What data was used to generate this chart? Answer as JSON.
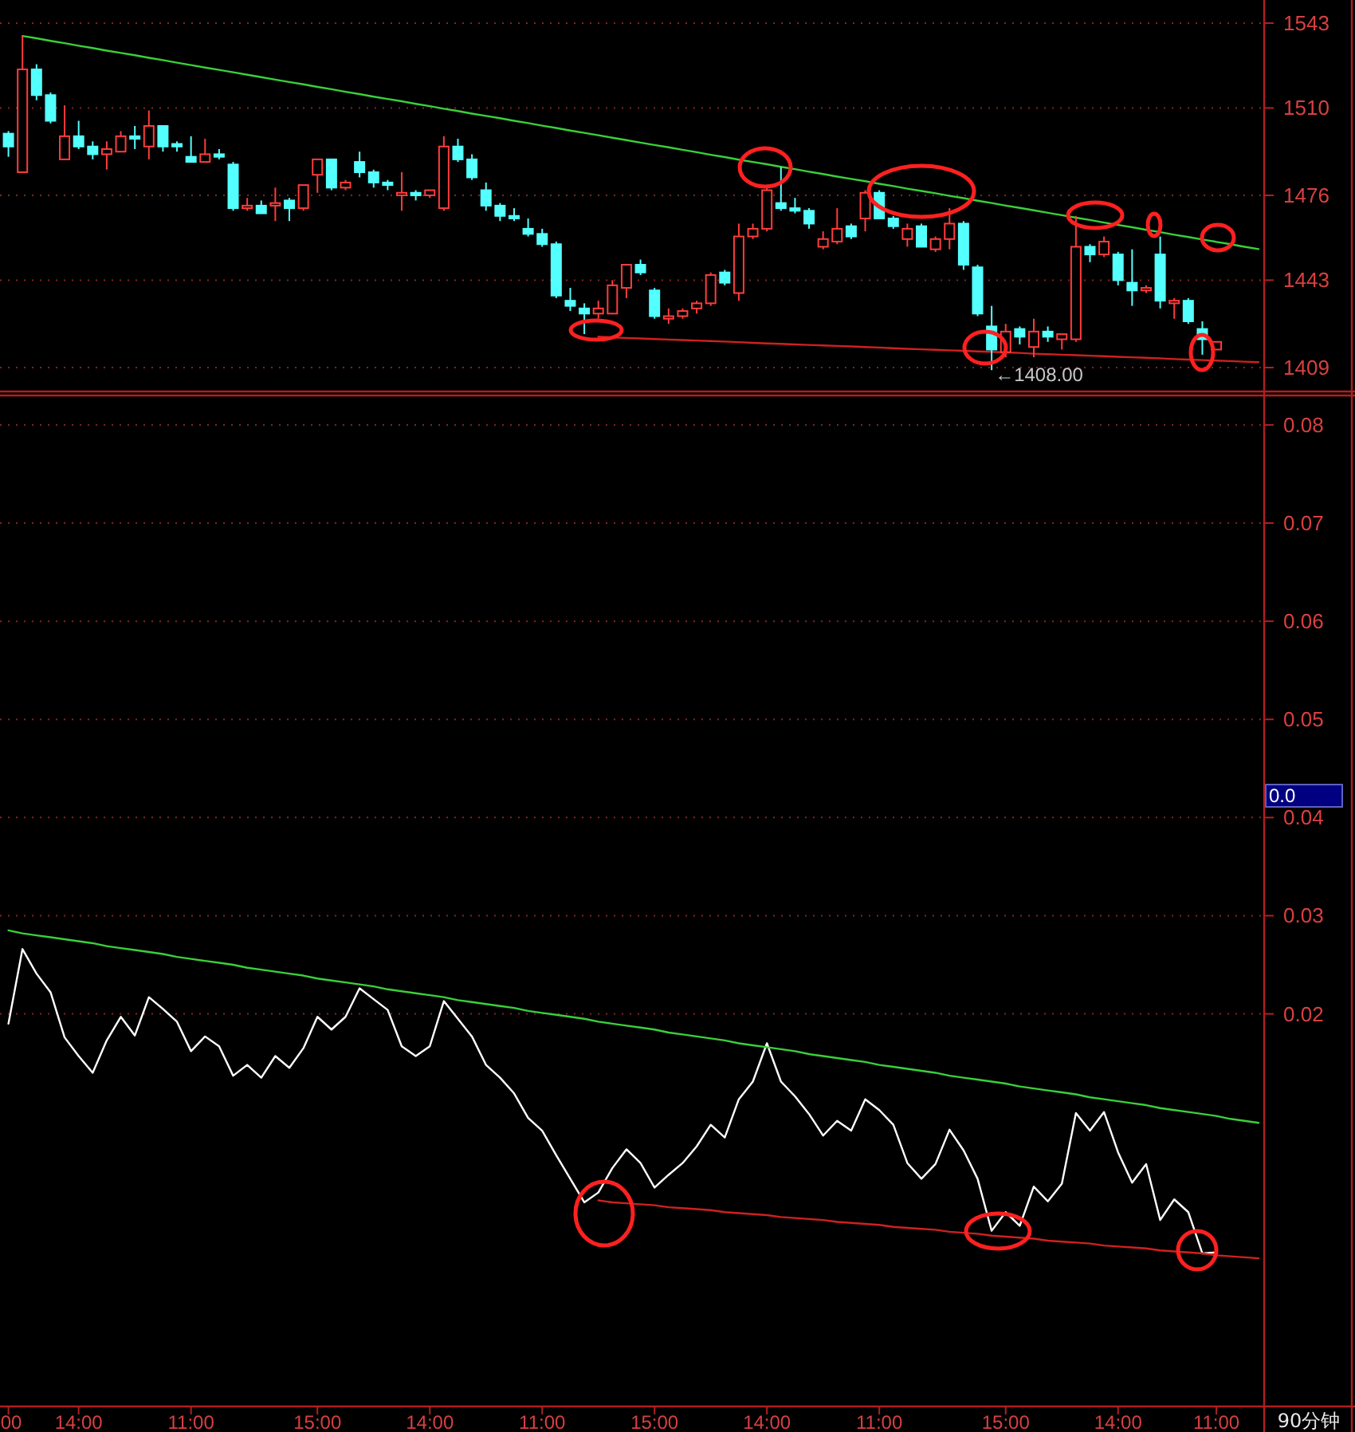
{
  "chart_data": [
    {
      "type": "candlestick",
      "categories": [
        null,
        null,
        null,
        null,
        null,
        null,
        null,
        null,
        null,
        null,
        null,
        null,
        null,
        null,
        null,
        null,
        null,
        null,
        null,
        null,
        null,
        null,
        null,
        null,
        null,
        null,
        null,
        null,
        null,
        null,
        null,
        null,
        null,
        null,
        null,
        null,
        null,
        null,
        null,
        null,
        null,
        null,
        null,
        null,
        null,
        null,
        null,
        null,
        null,
        null,
        null,
        null,
        null,
        null,
        null,
        null,
        null,
        null,
        null,
        null,
        null,
        null,
        null,
        null,
        null,
        null,
        null,
        null,
        null,
        null,
        null,
        null,
        null,
        null,
        null,
        null,
        null,
        null,
        null,
        null,
        null,
        null,
        null,
        null,
        null,
        null,
        null,
        null,
        null,
        null
      ],
      "ohlc": [
        [
          1500,
          1501,
          1491,
          1495
        ],
        [
          1485,
          1538,
          1485,
          1525
        ],
        [
          1525,
          1527,
          1513,
          1515
        ],
        [
          1515,
          1516,
          1504,
          1505
        ],
        [
          1490,
          1511,
          1490,
          1499
        ],
        [
          1499,
          1505,
          1494,
          1495
        ],
        [
          1495,
          1497,
          1490,
          1492
        ],
        [
          1492,
          1497,
          1486,
          1494
        ],
        [
          1493,
          1501,
          1493,
          1499
        ],
        [
          1499,
          1503,
          1494,
          1498
        ],
        [
          1495,
          1509,
          1490,
          1503
        ],
        [
          1503,
          1503,
          1493,
          1495
        ],
        [
          1496,
          1497,
          1493,
          1495
        ],
        [
          1491,
          1499,
          1489,
          1489
        ],
        [
          1489,
          1498,
          1489,
          1492
        ],
        [
          1492,
          1494,
          1490,
          1491
        ],
        [
          1488,
          1489,
          1470,
          1471
        ],
        [
          1471,
          1475,
          1470,
          1472
        ],
        [
          1472,
          1474,
          1469,
          1469
        ],
        [
          1472,
          1479,
          1466,
          1473
        ],
        [
          1474,
          1475,
          1466,
          1471
        ],
        [
          1471,
          1480,
          1470,
          1480
        ],
        [
          1484,
          1490,
          1477,
          1490
        ],
        [
          1490,
          1490,
          1478,
          1479
        ],
        [
          1479,
          1482,
          1478,
          1481
        ],
        [
          1489,
          1493,
          1483,
          1485
        ],
        [
          1485,
          1486,
          1479,
          1481
        ],
        [
          1481,
          1482,
          1478,
          1480
        ],
        [
          1476,
          1485,
          1470,
          1477
        ],
        [
          1477,
          1478,
          1474,
          1476
        ],
        [
          1476,
          1478,
          1475,
          1478
        ],
        [
          1471,
          1499,
          1470,
          1495
        ],
        [
          1495,
          1498,
          1489,
          1490
        ],
        [
          1490,
          1492,
          1482,
          1483
        ],
        [
          1478,
          1481,
          1470,
          1472
        ],
        [
          1472,
          1473,
          1466,
          1468
        ],
        [
          1468,
          1471,
          1466,
          1467
        ],
        [
          1463,
          1467,
          1460,
          1461
        ],
        [
          1461,
          1463,
          1456,
          1457
        ],
        [
          1457,
          1458,
          1436,
          1437
        ],
        [
          1435,
          1440,
          1431,
          1433
        ],
        [
          1432,
          1434,
          1422,
          1430
        ],
        [
          1430,
          1435,
          1428,
          1432
        ],
        [
          1430,
          1443,
          1430,
          1441
        ],
        [
          1440,
          1449,
          1436,
          1449
        ],
        [
          1449,
          1451,
          1445,
          1446
        ],
        [
          1439,
          1440,
          1428,
          1429
        ],
        [
          1428,
          1432,
          1426,
          1429
        ],
        [
          1429,
          1432,
          1428,
          1431
        ],
        [
          1432,
          1435,
          1430,
          1434
        ],
        [
          1434,
          1446,
          1433,
          1445
        ],
        [
          1446,
          1447,
          1441,
          1442
        ],
        [
          1438,
          1465,
          1435,
          1460
        ],
        [
          1460,
          1465,
          1459,
          1463
        ],
        [
          1463,
          1479,
          1462,
          1478
        ],
        [
          1473,
          1487,
          1470,
          1471
        ],
        [
          1471,
          1475,
          1469,
          1470
        ],
        [
          1470,
          1471,
          1463,
          1465
        ],
        [
          1456,
          1462,
          1455,
          1459
        ],
        [
          1458,
          1471,
          1457,
          1463
        ],
        [
          1464,
          1465,
          1459,
          1460
        ],
        [
          1467,
          1478,
          1462,
          1477
        ],
        [
          1477,
          1478,
          1467,
          1467
        ],
        [
          1467,
          1468,
          1463,
          1464
        ],
        [
          1459,
          1465,
          1456,
          1463
        ],
        [
          1464,
          1465,
          1456,
          1456
        ],
        [
          1455,
          1460,
          1454,
          1459
        ],
        [
          1459,
          1471,
          1455,
          1465
        ],
        [
          1465,
          1466,
          1447,
          1449
        ],
        [
          1448,
          1449,
          1429,
          1430
        ],
        [
          1425,
          1433,
          1408,
          1416
        ],
        [
          1415,
          1426,
          1413,
          1423
        ],
        [
          1424,
          1425,
          1418,
          1421
        ],
        [
          1417,
          1428,
          1413,
          1423
        ],
        [
          1423,
          1425,
          1419,
          1421
        ],
        [
          1420,
          1422,
          1416,
          1422
        ],
        [
          1420,
          1468,
          1419,
          1456
        ],
        [
          1456,
          1457,
          1450,
          1453
        ],
        [
          1453,
          1460,
          1452,
          1458
        ],
        [
          1453,
          1454,
          1441,
          1443
        ],
        [
          1442,
          1455,
          1433,
          1439
        ],
        [
          1439,
          1441,
          1438,
          1440
        ],
        [
          1453,
          1460,
          1432,
          1435
        ],
        [
          1434,
          1436,
          1428,
          1435
        ],
        [
          1435,
          1436,
          1426,
          1427
        ],
        [
          1424,
          1427,
          1414,
          1420
        ],
        [
          1416,
          1419,
          1416,
          1419
        ],
        null,
        null,
        null
      ],
      "series": [
        {
          "type": "line",
          "values": [
            null,
            1538.0,
            1537.1,
            1536.1,
            1535.2,
            1534.2,
            1533.3,
            1532.3,
            1531.4,
            1530.5,
            1529.5,
            1528.6,
            1527.6,
            1526.7,
            1525.7,
            1524.8,
            1523.9,
            1522.9,
            1522.0,
            1521.0,
            1520.1,
            1519.2,
            1518.2,
            1517.3,
            1516.3,
            1515.4,
            1514.4,
            1513.5,
            1512.6,
            1511.6,
            1510.7,
            1509.7,
            1508.8,
            1507.8,
            1506.9,
            1506.0,
            1505.0,
            1504.1,
            1503.1,
            1502.2,
            1501.2,
            1500.3,
            1499.4,
            1498.4,
            1497.5,
            1496.5,
            1495.6,
            1494.7,
            1493.7,
            1492.8,
            1491.8,
            1490.9,
            1489.9,
            1489.0,
            1488.1,
            1487.1,
            1486.2,
            1485.2,
            1484.3,
            1483.3,
            1482.4,
            1481.5,
            1480.5,
            1479.6,
            1478.6,
            1477.7,
            1476.8,
            1475.8,
            1474.9,
            1473.9,
            1473.0,
            1472.0,
            1471.1,
            1470.2,
            1469.2,
            1468.3,
            1467.3,
            1466.4,
            1465.4,
            1464.5,
            1463.6,
            1462.6,
            1461.7,
            1460.7,
            1459.8,
            1458.8,
            1457.9,
            1457.0,
            1456.0,
            1455.1
          ],
          "color": "#3ad03a"
        },
        {
          "type": "line",
          "values": [
            null,
            null,
            null,
            null,
            null,
            null,
            null,
            null,
            null,
            null,
            null,
            null,
            null,
            null,
            null,
            null,
            null,
            null,
            null,
            null,
            null,
            null,
            null,
            null,
            null,
            null,
            null,
            null,
            null,
            null,
            null,
            null,
            null,
            null,
            null,
            null,
            null,
            null,
            null,
            null,
            null,
            null,
            1421.0,
            1420.7,
            1420.5,
            1420.3,
            1420.1,
            1419.9,
            1419.7,
            1419.5,
            1419.3,
            1419.1,
            1418.9,
            1418.6,
            1418.4,
            1418.2,
            1418.0,
            1417.8,
            1417.6,
            1417.4,
            1417.2,
            1417.0,
            1416.8,
            1416.5,
            1416.3,
            1416.1,
            1415.9,
            1415.7,
            1415.5,
            1415.3,
            1415.1,
            1414.9,
            1414.7,
            1414.4,
            1414.2,
            1414.0,
            1413.8,
            1413.6,
            1413.4,
            1413.2,
            1413.0,
            1412.8,
            1412.6,
            1412.3,
            1412.1,
            1411.9,
            1411.7,
            1411.5,
            1411.3,
            1411.1
          ],
          "color": "#d02020"
        }
      ],
      "ylim": [
        1400,
        1552
      ],
      "yticks": [
        1543,
        1510,
        1476,
        1443,
        1409
      ],
      "grid": "y",
      "tick_labels": "y",
      "annotations": [
        "←1408.00"
      ]
    },
    {
      "type": "line",
      "categories": [
        "00",
        null,
        null,
        null,
        null,
        "14:00",
        null,
        null,
        null,
        null,
        null,
        null,
        null,
        "11:00",
        null,
        null,
        null,
        null,
        null,
        null,
        null,
        null,
        "15:00",
        null,
        null,
        null,
        null,
        null,
        null,
        null,
        "14:00",
        null,
        null,
        null,
        null,
        null,
        null,
        null,
        "11:00",
        null,
        null,
        null,
        null,
        null,
        null,
        null,
        "15:00",
        null,
        null,
        null,
        null,
        null,
        null,
        null,
        "14:00",
        null,
        null,
        null,
        null,
        null,
        null,
        null,
        "11:00",
        null,
        null,
        null,
        null,
        null,
        null,
        null,
        null,
        "15:00",
        null,
        null,
        null,
        null,
        null,
        null,
        null,
        "14:00",
        null,
        null,
        null,
        null,
        null,
        null,
        "11:00",
        null,
        null,
        null
      ],
      "series": [
        {
          "values": [
            0.019,
            0.0266,
            0.0241,
            0.0222,
            0.0176,
            0.0157,
            0.014,
            0.0173,
            0.0197,
            0.0178,
            0.0217,
            0.0205,
            0.0192,
            0.0162,
            0.0177,
            0.0167,
            0.0137,
            0.0148,
            0.0135,
            0.0157,
            0.0145,
            0.0165,
            0.0197,
            0.0184,
            0.0197,
            0.0226,
            0.0215,
            0.0204,
            0.0167,
            0.0157,
            0.0167,
            0.0213,
            0.0195,
            0.0177,
            0.0148,
            0.0135,
            0.0119,
            0.0094,
            0.0081,
            0.0056,
            0.0032,
            0.0008,
            0.0018,
            0.0043,
            0.0062,
            0.0048,
            0.0023,
            0.0036,
            0.0048,
            0.0065,
            0.0087,
            0.0074,
            0.0113,
            0.0131,
            0.017,
            0.0131,
            0.0116,
            0.0098,
            0.0076,
            0.0091,
            0.0081,
            0.0113,
            0.0102,
            0.0087,
            0.0048,
            0.0032,
            0.0047,
            0.0082,
            0.0061,
            0.0032,
            -0.0021,
            -0.0002,
            -0.0016,
            0.0024,
            0.0009,
            0.0027,
            0.0099,
            0.0081,
            0.01,
            0.0059,
            0.0028,
            0.0047,
            -0.001,
            0.0011,
            -0.0002,
            -0.0044,
            -0.0043,
            null,
            null,
            null
          ],
          "color": "#ffffff"
        },
        {
          "values": [
            0.0285,
            0.0282,
            0.028,
            0.0278,
            0.0276,
            0.0274,
            0.0272,
            0.0269,
            0.0267,
            0.0265,
            0.0263,
            0.0261,
            0.0258,
            0.0256,
            0.0254,
            0.0252,
            0.025,
            0.0247,
            0.0245,
            0.0243,
            0.0241,
            0.0239,
            0.0236,
            0.0234,
            0.0232,
            0.023,
            0.0228,
            0.0225,
            0.0223,
            0.0221,
            0.0219,
            0.0217,
            0.0214,
            0.0212,
            0.021,
            0.0208,
            0.0206,
            0.0203,
            0.0201,
            0.0199,
            0.0197,
            0.0195,
            0.0192,
            0.019,
            0.0188,
            0.0186,
            0.0184,
            0.0181,
            0.0179,
            0.0177,
            0.0175,
            0.0173,
            0.017,
            0.0168,
            0.0166,
            0.0164,
            0.0162,
            0.0159,
            0.0157,
            0.0155,
            0.0153,
            0.0151,
            0.0148,
            0.0146,
            0.0144,
            0.0142,
            0.014,
            0.0137,
            0.0135,
            0.0133,
            0.0131,
            0.0129,
            0.0126,
            0.0124,
            0.0122,
            0.012,
            0.0118,
            0.0115,
            0.0113,
            0.0111,
            0.0109,
            0.0107,
            0.0104,
            0.0102,
            0.01,
            0.0098,
            0.0096,
            0.0093,
            0.0091,
            0.0089
          ],
          "color": "#3ad03a"
        },
        {
          "values": [
            null,
            null,
            null,
            null,
            null,
            null,
            null,
            null,
            null,
            null,
            null,
            null,
            null,
            null,
            null,
            null,
            null,
            null,
            null,
            null,
            null,
            null,
            null,
            null,
            null,
            null,
            null,
            null,
            null,
            null,
            null,
            null,
            null,
            null,
            null,
            null,
            null,
            null,
            null,
            null,
            null,
            null,
            0.001,
            0.0008,
            0.0007,
            0.0006,
            0.0005,
            0.0003,
            0.0002,
            0.0001,
            0.0,
            -0.0002,
            -0.0003,
            -0.0004,
            -0.0005,
            -0.0007,
            -0.0008,
            -0.0009,
            -0.001,
            -0.0012,
            -0.0013,
            -0.0014,
            -0.0015,
            -0.0017,
            -0.0018,
            -0.0019,
            -0.002,
            -0.0022,
            -0.0023,
            -0.0024,
            -0.0026,
            -0.0027,
            -0.0028,
            -0.0029,
            -0.0031,
            -0.0032,
            -0.0033,
            -0.0034,
            -0.0036,
            -0.0037,
            -0.0038,
            -0.0039,
            -0.0041,
            -0.0042,
            -0.0043,
            -0.0044,
            -0.0046,
            -0.0047,
            -0.0048,
            -0.0049
          ],
          "color": "#d02020"
        }
      ],
      "ylim": [
        -0.02,
        0.083
      ],
      "yticks": [
        0.08,
        0.07,
        0.06,
        0.05,
        0.04,
        0.03,
        0.02
      ],
      "grid": "y",
      "annotations": [
        "0.0",
        "90分钟"
      ]
    }
  ]
}
